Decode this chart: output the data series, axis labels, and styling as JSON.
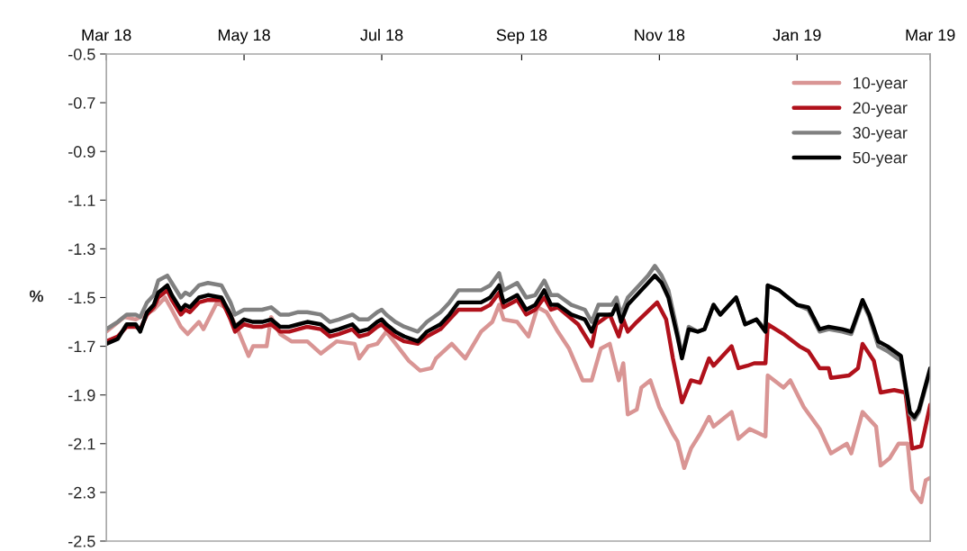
{
  "chart_data": {
    "type": "line",
    "ylabel": "%",
    "xlim": [
      "2018-03-01",
      "2019-03-01"
    ],
    "xticks": [
      {
        "value": "2018-03-01",
        "label": "Mar 18"
      },
      {
        "value": "2018-05-01",
        "label": "May 18"
      },
      {
        "value": "2018-07-01",
        "label": "Jul 18"
      },
      {
        "value": "2018-09-01",
        "label": "Sep 18"
      },
      {
        "value": "2018-11-01",
        "label": "Nov 18"
      },
      {
        "value": "2019-01-01",
        "label": "Jan 19"
      },
      {
        "value": "2019-03-01",
        "label": "Mar 19"
      }
    ],
    "ylim": [
      -2.5,
      -0.5
    ],
    "yticks": [
      -2.5,
      -2.3,
      -2.1,
      -1.9,
      -1.7,
      -1.5,
      -1.3,
      -1.1,
      -0.9,
      -0.7,
      -0.5
    ],
    "grid": false,
    "legend": "top right",
    "line_style": "solid",
    "marker": "none",
    "series": [
      {
        "name": "10-year",
        "color": "#d99594",
        "x": [
          "2018-03-01",
          "2018-03-09",
          "2018-03-14",
          "2018-03-22",
          "2018-03-27",
          "2018-03-30",
          "2018-04-03",
          "2018-04-06",
          "2018-04-11",
          "2018-04-13",
          "2018-04-19",
          "2018-04-24",
          "2018-04-29",
          "2018-05-03",
          "2018-05-05",
          "2018-05-11",
          "2018-05-13",
          "2018-05-17",
          "2018-05-22",
          "2018-05-29",
          "2018-06-04",
          "2018-06-11",
          "2018-06-19",
          "2018-06-21",
          "2018-06-25",
          "2018-06-29",
          "2018-07-03",
          "2018-07-13",
          "2018-07-18",
          "2018-07-23",
          "2018-07-25",
          "2018-08-01",
          "2018-08-07",
          "2018-08-14",
          "2018-08-19",
          "2018-08-22",
          "2018-08-24",
          "2018-08-30",
          "2018-09-04",
          "2018-09-08",
          "2018-09-12",
          "2018-09-17",
          "2018-09-22",
          "2018-09-28",
          "2018-10-02",
          "2018-10-06",
          "2018-10-10",
          "2018-10-14",
          "2018-10-16",
          "2018-10-18",
          "2018-10-22",
          "2018-10-24",
          "2018-10-28",
          "2018-11-01",
          "2018-11-07",
          "2018-11-09",
          "2018-11-12",
          "2018-11-15",
          "2018-11-19",
          "2018-11-23",
          "2018-11-25",
          "2018-12-03",
          "2018-12-06",
          "2018-12-11",
          "2018-12-18",
          "2018-12-19",
          "2018-12-26",
          "2018-12-29",
          "2019-01-04",
          "2019-01-11",
          "2019-01-16",
          "2019-01-23",
          "2019-01-25",
          "2019-01-30",
          "2019-02-05",
          "2019-02-07",
          "2019-02-11",
          "2019-02-15",
          "2019-02-19",
          "2019-02-21",
          "2019-02-25",
          "2019-02-27",
          "2019-03-01"
        ],
        "values": [
          -1.64,
          -1.58,
          -1.59,
          -1.55,
          -1.5,
          -1.55,
          -1.62,
          -1.65,
          -1.6,
          -1.63,
          -1.52,
          -1.55,
          -1.65,
          -1.74,
          -1.7,
          -1.7,
          -1.58,
          -1.65,
          -1.68,
          -1.68,
          -1.73,
          -1.68,
          -1.69,
          -1.75,
          -1.7,
          -1.69,
          -1.64,
          -1.76,
          -1.8,
          -1.79,
          -1.75,
          -1.69,
          -1.75,
          -1.64,
          -1.6,
          -1.53,
          -1.59,
          -1.6,
          -1.66,
          -1.54,
          -1.56,
          -1.64,
          -1.71,
          -1.84,
          -1.84,
          -1.71,
          -1.69,
          -1.84,
          -1.77,
          -1.98,
          -1.96,
          -1.87,
          -1.84,
          -1.95,
          -2.06,
          -2.09,
          -2.2,
          -2.12,
          -2.06,
          -1.99,
          -2.03,
          -1.97,
          -2.08,
          -2.04,
          -2.07,
          -1.82,
          -1.87,
          -1.84,
          -1.95,
          -2.04,
          -2.14,
          -2.1,
          -2.14,
          -1.97,
          -2.03,
          -2.19,
          -2.16,
          -2.1,
          -2.1,
          -2.29,
          -2.34,
          -2.25,
          -2.24
        ]
      },
      {
        "name": "20-year",
        "color": "#b0111b",
        "x": [
          "2018-03-01",
          "2018-03-06",
          "2018-03-10",
          "2018-03-14",
          "2018-03-16",
          "2018-03-19",
          "2018-03-22",
          "2018-03-24",
          "2018-03-28",
          "2018-03-30",
          "2018-04-03",
          "2018-04-05",
          "2018-04-07",
          "2018-04-11",
          "2018-04-15",
          "2018-04-21",
          "2018-04-25",
          "2018-04-27",
          "2018-05-01",
          "2018-05-05",
          "2018-05-09",
          "2018-05-13",
          "2018-05-17",
          "2018-05-21",
          "2018-05-25",
          "2018-05-29",
          "2018-06-04",
          "2018-06-08",
          "2018-06-12",
          "2018-06-18",
          "2018-06-21",
          "2018-06-25",
          "2018-06-29",
          "2018-07-01",
          "2018-07-03",
          "2018-07-07",
          "2018-07-11",
          "2018-07-17",
          "2018-07-21",
          "2018-07-27",
          "2018-07-31",
          "2018-08-04",
          "2018-08-08",
          "2018-08-14",
          "2018-08-18",
          "2018-08-22",
          "2018-08-24",
          "2018-08-30",
          "2018-09-03",
          "2018-09-07",
          "2018-09-11",
          "2018-09-14",
          "2018-09-17",
          "2018-09-26",
          "2018-10-02",
          "2018-10-04",
          "2018-10-10",
          "2018-10-14",
          "2018-10-16",
          "2018-10-18",
          "2018-10-22",
          "2018-10-31",
          "2018-11-04",
          "2018-11-07",
          "2018-11-11",
          "2018-11-15",
          "2018-11-19",
          "2018-11-23",
          "2018-11-25",
          "2018-12-03",
          "2018-12-06",
          "2018-12-10",
          "2018-12-13",
          "2018-12-18",
          "2018-12-19",
          "2018-12-26",
          "2019-01-02",
          "2019-01-06",
          "2019-01-11",
          "2019-01-15",
          "2019-01-16",
          "2019-01-24",
          "2019-01-28",
          "2019-01-30",
          "2019-02-04",
          "2019-02-07",
          "2019-02-13",
          "2019-02-18",
          "2019-02-21",
          "2019-02-25",
          "2019-03-01"
        ],
        "values": [
          -1.68,
          -1.66,
          -1.62,
          -1.62,
          -1.63,
          -1.57,
          -1.54,
          -1.5,
          -1.47,
          -1.51,
          -1.57,
          -1.55,
          -1.56,
          -1.52,
          -1.51,
          -1.51,
          -1.59,
          -1.64,
          -1.61,
          -1.62,
          -1.62,
          -1.61,
          -1.64,
          -1.64,
          -1.63,
          -1.62,
          -1.63,
          -1.66,
          -1.65,
          -1.63,
          -1.66,
          -1.65,
          -1.62,
          -1.61,
          -1.63,
          -1.66,
          -1.68,
          -1.69,
          -1.66,
          -1.63,
          -1.59,
          -1.55,
          -1.55,
          -1.55,
          -1.53,
          -1.48,
          -1.54,
          -1.51,
          -1.57,
          -1.55,
          -1.5,
          -1.55,
          -1.54,
          -1.61,
          -1.7,
          -1.61,
          -1.57,
          -1.66,
          -1.59,
          -1.64,
          -1.6,
          -1.52,
          -1.59,
          -1.75,
          -1.93,
          -1.84,
          -1.85,
          -1.75,
          -1.78,
          -1.7,
          -1.79,
          -1.78,
          -1.77,
          -1.77,
          -1.61,
          -1.65,
          -1.7,
          -1.72,
          -1.79,
          -1.79,
          -1.83,
          -1.82,
          -1.79,
          -1.69,
          -1.76,
          -1.89,
          -1.88,
          -1.89,
          -2.12,
          -2.11,
          -1.94
        ]
      },
      {
        "name": "30-year",
        "color": "#808080",
        "x": [
          "2018-03-01",
          "2018-03-06",
          "2018-03-10",
          "2018-03-14",
          "2018-03-16",
          "2018-03-19",
          "2018-03-22",
          "2018-03-24",
          "2018-03-28",
          "2018-03-30",
          "2018-04-03",
          "2018-04-05",
          "2018-04-07",
          "2018-04-11",
          "2018-04-15",
          "2018-04-21",
          "2018-04-25",
          "2018-04-27",
          "2018-05-01",
          "2018-05-05",
          "2018-05-09",
          "2018-05-13",
          "2018-05-17",
          "2018-05-21",
          "2018-05-25",
          "2018-05-29",
          "2018-06-04",
          "2018-06-08",
          "2018-06-12",
          "2018-06-18",
          "2018-06-21",
          "2018-06-25",
          "2018-06-29",
          "2018-07-01",
          "2018-07-03",
          "2018-07-07",
          "2018-07-11",
          "2018-07-17",
          "2018-07-21",
          "2018-07-27",
          "2018-07-31",
          "2018-08-04",
          "2018-08-08",
          "2018-08-14",
          "2018-08-18",
          "2018-08-22",
          "2018-08-24",
          "2018-08-30",
          "2018-09-03",
          "2018-09-07",
          "2018-09-11",
          "2018-09-14",
          "2018-09-17",
          "2018-09-23",
          "2018-09-29",
          "2018-10-02",
          "2018-10-05",
          "2018-10-11",
          "2018-10-13",
          "2018-10-15",
          "2018-10-18",
          "2018-10-23",
          "2018-10-27",
          "2018-10-30",
          "2018-11-02",
          "2018-11-05",
          "2018-11-09",
          "2018-11-11",
          "2018-11-14",
          "2018-11-18",
          "2018-11-21",
          "2018-11-25",
          "2018-11-28",
          "2018-12-02",
          "2018-12-05",
          "2018-12-09",
          "2018-12-14",
          "2018-12-18",
          "2018-12-19",
          "2018-12-24",
          "2018-12-28",
          "2019-01-01",
          "2019-01-06",
          "2019-01-11",
          "2019-01-15",
          "2019-01-21",
          "2019-01-25",
          "2019-01-30",
          "2019-02-02",
          "2019-02-06",
          "2019-02-10",
          "2019-02-16",
          "2019-02-20",
          "2019-02-22",
          "2019-02-24",
          "2019-03-01"
        ],
        "values": [
          -1.63,
          -1.6,
          -1.57,
          -1.57,
          -1.58,
          -1.52,
          -1.49,
          -1.43,
          -1.41,
          -1.44,
          -1.5,
          -1.48,
          -1.49,
          -1.45,
          -1.44,
          -1.45,
          -1.52,
          -1.57,
          -1.55,
          -1.55,
          -1.55,
          -1.54,
          -1.57,
          -1.57,
          -1.56,
          -1.56,
          -1.57,
          -1.6,
          -1.59,
          -1.57,
          -1.59,
          -1.59,
          -1.56,
          -1.55,
          -1.57,
          -1.6,
          -1.62,
          -1.64,
          -1.6,
          -1.56,
          -1.52,
          -1.47,
          -1.47,
          -1.47,
          -1.45,
          -1.4,
          -1.47,
          -1.44,
          -1.5,
          -1.49,
          -1.43,
          -1.49,
          -1.49,
          -1.53,
          -1.55,
          -1.6,
          -1.53,
          -1.53,
          -1.5,
          -1.57,
          -1.5,
          -1.45,
          -1.41,
          -1.37,
          -1.41,
          -1.47,
          -1.64,
          -1.74,
          -1.62,
          -1.64,
          -1.63,
          -1.53,
          -1.57,
          -1.53,
          -1.5,
          -1.61,
          -1.59,
          -1.63,
          -1.45,
          -1.47,
          -1.5,
          -1.53,
          -1.55,
          -1.64,
          -1.63,
          -1.64,
          -1.65,
          -1.52,
          -1.58,
          -1.7,
          -1.72,
          -1.76,
          -1.98,
          -2.0,
          -1.97,
          -1.8
        ]
      },
      {
        "name": "50-year",
        "color": "#000000",
        "x": [
          "2018-03-01",
          "2018-03-06",
          "2018-03-10",
          "2018-03-14",
          "2018-03-16",
          "2018-03-19",
          "2018-03-22",
          "2018-03-24",
          "2018-03-28",
          "2018-03-30",
          "2018-04-03",
          "2018-04-05",
          "2018-04-07",
          "2018-04-11",
          "2018-04-15",
          "2018-04-21",
          "2018-04-25",
          "2018-04-27",
          "2018-05-01",
          "2018-05-05",
          "2018-05-09",
          "2018-05-13",
          "2018-05-17",
          "2018-05-21",
          "2018-05-25",
          "2018-05-29",
          "2018-06-04",
          "2018-06-08",
          "2018-06-12",
          "2018-06-18",
          "2018-06-21",
          "2018-06-25",
          "2018-06-29",
          "2018-07-01",
          "2018-07-03",
          "2018-07-07",
          "2018-07-11",
          "2018-07-17",
          "2018-07-21",
          "2018-07-27",
          "2018-07-31",
          "2018-08-04",
          "2018-08-08",
          "2018-08-14",
          "2018-08-18",
          "2018-08-22",
          "2018-08-24",
          "2018-08-30",
          "2018-09-03",
          "2018-09-07",
          "2018-09-11",
          "2018-09-14",
          "2018-09-17",
          "2018-09-23",
          "2018-09-29",
          "2018-10-02",
          "2018-10-05",
          "2018-10-11",
          "2018-10-13",
          "2018-10-15",
          "2018-10-18",
          "2018-10-23",
          "2018-10-27",
          "2018-10-30",
          "2018-11-02",
          "2018-11-05",
          "2018-11-09",
          "2018-11-11",
          "2018-11-14",
          "2018-11-18",
          "2018-11-21",
          "2018-11-25",
          "2018-11-28",
          "2018-12-02",
          "2018-12-05",
          "2018-12-09",
          "2018-12-14",
          "2018-12-18",
          "2018-12-19",
          "2018-12-24",
          "2018-12-28",
          "2019-01-01",
          "2019-01-06",
          "2019-01-11",
          "2019-01-15",
          "2019-01-21",
          "2019-01-25",
          "2019-01-30",
          "2019-02-02",
          "2019-02-06",
          "2019-02-10",
          "2019-02-16",
          "2019-02-20",
          "2019-02-22",
          "2019-02-24",
          "2019-03-01"
        ],
        "values": [
          -1.69,
          -1.67,
          -1.61,
          -1.61,
          -1.64,
          -1.56,
          -1.53,
          -1.48,
          -1.45,
          -1.49,
          -1.55,
          -1.53,
          -1.54,
          -1.5,
          -1.49,
          -1.5,
          -1.57,
          -1.62,
          -1.59,
          -1.6,
          -1.6,
          -1.59,
          -1.62,
          -1.62,
          -1.61,
          -1.6,
          -1.61,
          -1.64,
          -1.63,
          -1.61,
          -1.64,
          -1.63,
          -1.6,
          -1.59,
          -1.61,
          -1.64,
          -1.66,
          -1.68,
          -1.64,
          -1.61,
          -1.57,
          -1.52,
          -1.52,
          -1.52,
          -1.5,
          -1.45,
          -1.52,
          -1.49,
          -1.55,
          -1.53,
          -1.47,
          -1.53,
          -1.53,
          -1.57,
          -1.59,
          -1.64,
          -1.57,
          -1.57,
          -1.53,
          -1.6,
          -1.53,
          -1.48,
          -1.44,
          -1.41,
          -1.44,
          -1.5,
          -1.66,
          -1.75,
          -1.63,
          -1.64,
          -1.63,
          -1.53,
          -1.57,
          -1.53,
          -1.5,
          -1.61,
          -1.59,
          -1.64,
          -1.45,
          -1.47,
          -1.5,
          -1.53,
          -1.54,
          -1.63,
          -1.62,
          -1.63,
          -1.64,
          -1.51,
          -1.57,
          -1.68,
          -1.7,
          -1.74,
          -1.97,
          -1.99,
          -1.96,
          -1.79
        ]
      }
    ]
  }
}
